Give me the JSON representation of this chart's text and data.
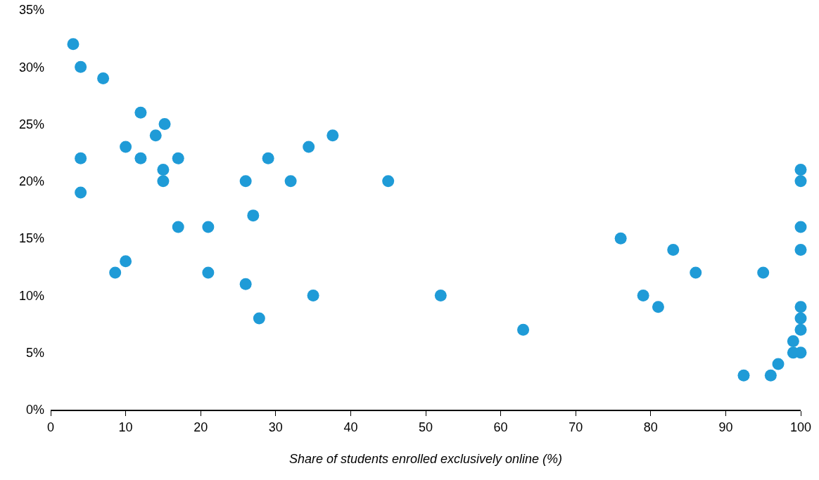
{
  "chart_data": {
    "type": "scatter",
    "xlabel": "Share of students enrolled exclusively online (%)",
    "x": [
      3,
      4,
      7,
      12,
      15.2,
      14,
      37.6,
      4,
      10,
      12,
      17,
      15,
      15,
      29,
      34.4,
      26,
      32,
      45,
      4,
      17,
      21,
      27,
      8.6,
      10,
      21,
      26,
      27.8,
      35,
      52,
      63,
      76,
      83,
      79,
      81,
      86,
      95,
      100,
      100,
      100,
      100,
      100,
      100,
      100,
      100,
      99,
      99,
      97,
      92.4,
      96
    ],
    "values": [
      32,
      30,
      29,
      26,
      25,
      24,
      24,
      22,
      23,
      22,
      22,
      21,
      20,
      22,
      23,
      20,
      20,
      20,
      19,
      16,
      16,
      17,
      12,
      13,
      12,
      11,
      8,
      10,
      10,
      7,
      15,
      14,
      10,
      9,
      12,
      12,
      21,
      20,
      16,
      14,
      9,
      8,
      7,
      5,
      6,
      5,
      4,
      3,
      3
    ],
    "color": "#1f9bd7",
    "marker": "circle",
    "xlim": [
      0,
      100
    ],
    "xticks": [
      0,
      10,
      20,
      30,
      40,
      50,
      60,
      70,
      80,
      90,
      100
    ],
    "ylim": [
      0,
      35
    ],
    "yticks": [
      {
        "value": 0,
        "label": "0%"
      },
      {
        "value": 5,
        "label": "5%"
      },
      {
        "value": 10,
        "label": "10%"
      },
      {
        "value": 15,
        "label": "15%"
      },
      {
        "value": 20,
        "label": "20%"
      },
      {
        "value": 25,
        "label": "25%"
      },
      {
        "value": 30,
        "label": "30%"
      },
      {
        "value": 35,
        "label": "35%"
      }
    ],
    "grid": false,
    "legend": false
  }
}
